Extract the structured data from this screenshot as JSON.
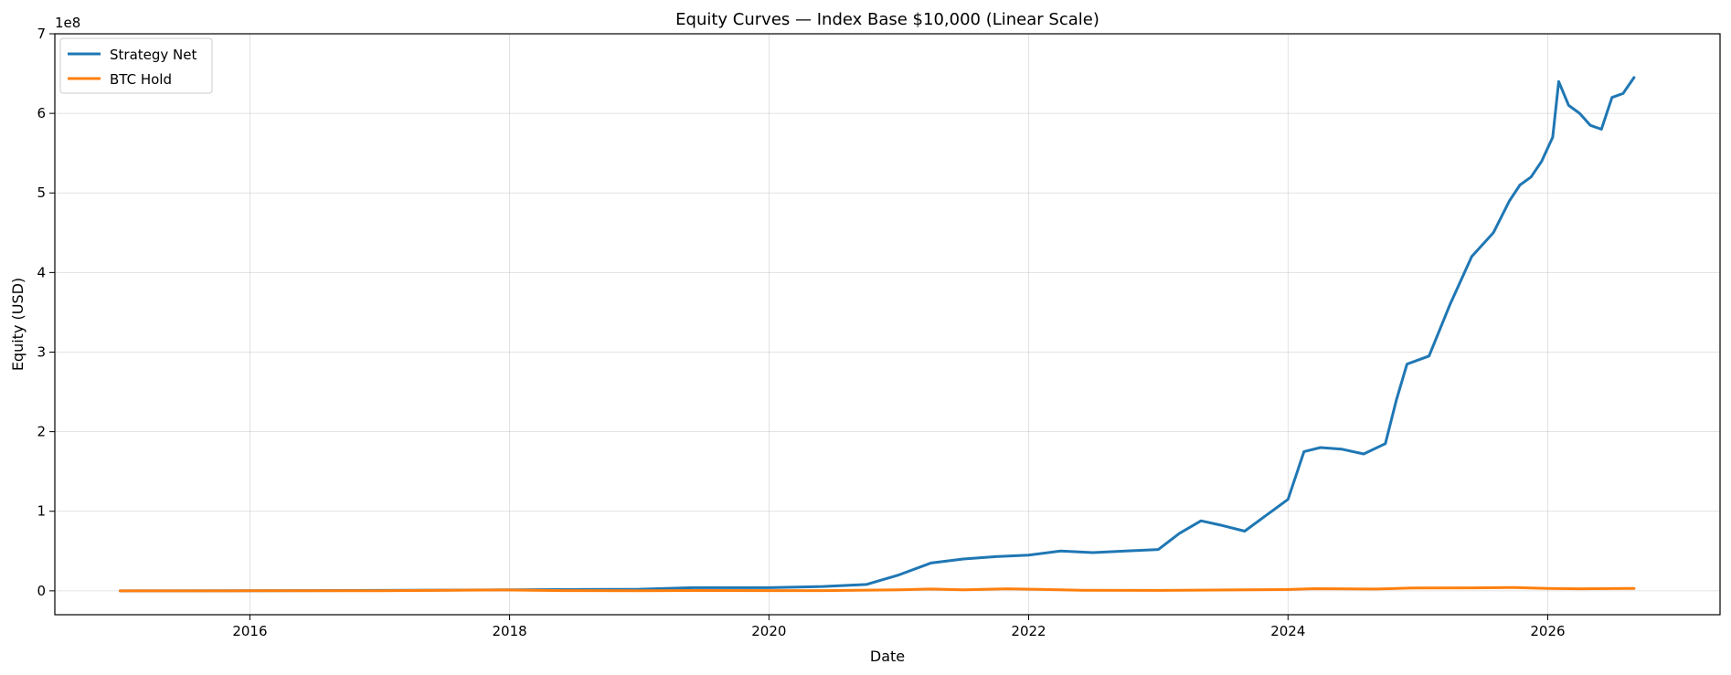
{
  "chart_data": {
    "type": "line",
    "title": "Equity Curves — Index Base $10,000 (Linear Scale)",
    "xlabel": "Date",
    "ylabel": "Equity (USD)",
    "y_offset_text": "1e8",
    "x_ticks": [
      "2016",
      "2018",
      "2020",
      "2022",
      "2024",
      "2026"
    ],
    "y_ticks": [
      "0",
      "1",
      "2",
      "3",
      "4",
      "5",
      "6",
      "7"
    ],
    "xlim": [
      "2014-07-01",
      "2027-05-01"
    ],
    "ylim": [
      -30000000,
      700000000
    ],
    "grid": true,
    "legend_position": "top-left",
    "series": [
      {
        "name": "Strategy Net",
        "color": "#1f77b4",
        "x": [
          "2015-01-01",
          "2016-01-01",
          "2017-01-01",
          "2018-01-01",
          "2019-01-01",
          "2019-06-01",
          "2020-01-01",
          "2020-06-01",
          "2020-10-01",
          "2021-01-01",
          "2021-04-01",
          "2021-07-01",
          "2021-10-01",
          "2022-01-01",
          "2022-04-01",
          "2022-07-01",
          "2022-10-01",
          "2023-01-01",
          "2023-03-01",
          "2023-05-01",
          "2023-07-01",
          "2023-09-01",
          "2023-11-01",
          "2024-01-01",
          "2024-02-15",
          "2024-04-01",
          "2024-06-01",
          "2024-08-01",
          "2024-10-01",
          "2024-11-01",
          "2024-12-01",
          "2025-01-01",
          "2025-02-01",
          "2025-04-01",
          "2025-06-01",
          "2025-08-01",
          "2025-09-15",
          "2025-10-15",
          "2025-11-15",
          "2025-12-15",
          "2026-01-15",
          "2026-02-01",
          "2026-03-01",
          "2026-04-01",
          "2026-05-01",
          "2026-06-01",
          "2026-07-01",
          "2026-08-01",
          "2026-09-01"
        ],
        "values": [
          10000,
          150000,
          500000,
          1200000,
          2000000,
          4000000,
          4000000,
          5500000,
          8000000,
          20000000,
          35000000,
          40000000,
          43000000,
          45000000,
          50000000,
          48000000,
          50000000,
          52000000,
          72000000,
          88000000,
          82000000,
          75000000,
          95000000,
          115000000,
          175000000,
          180000000,
          178000000,
          172000000,
          185000000,
          240000000,
          285000000,
          290000000,
          295000000,
          360000000,
          420000000,
          450000000,
          490000000,
          510000000,
          520000000,
          540000000,
          570000000,
          640000000,
          610000000,
          600000000,
          585000000,
          580000000,
          620000000,
          625000000,
          645000000
        ]
      },
      {
        "name": "BTC Hold",
        "color": "#ff7f0e",
        "x": [
          "2015-01-01",
          "2016-01-01",
          "2017-01-01",
          "2017-12-15",
          "2018-06-01",
          "2019-01-01",
          "2019-06-01",
          "2020-01-01",
          "2020-06-01",
          "2021-01-01",
          "2021-04-01",
          "2021-07-01",
          "2021-11-01",
          "2022-06-01",
          "2023-01-01",
          "2023-06-01",
          "2024-01-01",
          "2024-03-15",
          "2024-09-01",
          "2024-12-15",
          "2025-06-01",
          "2025-10-01",
          "2026-01-01",
          "2026-04-01",
          "2026-09-01"
        ],
        "values": [
          10000,
          15000,
          40000,
          1100000,
          250000,
          100000,
          400000,
          250000,
          300000,
          1300000,
          2200000,
          1200000,
          2600000,
          800000,
          500000,
          1000000,
          1700000,
          2700000,
          2200000,
          3500000,
          3800000,
          4200000,
          3000000,
          2600000,
          3000000
        ]
      }
    ]
  }
}
